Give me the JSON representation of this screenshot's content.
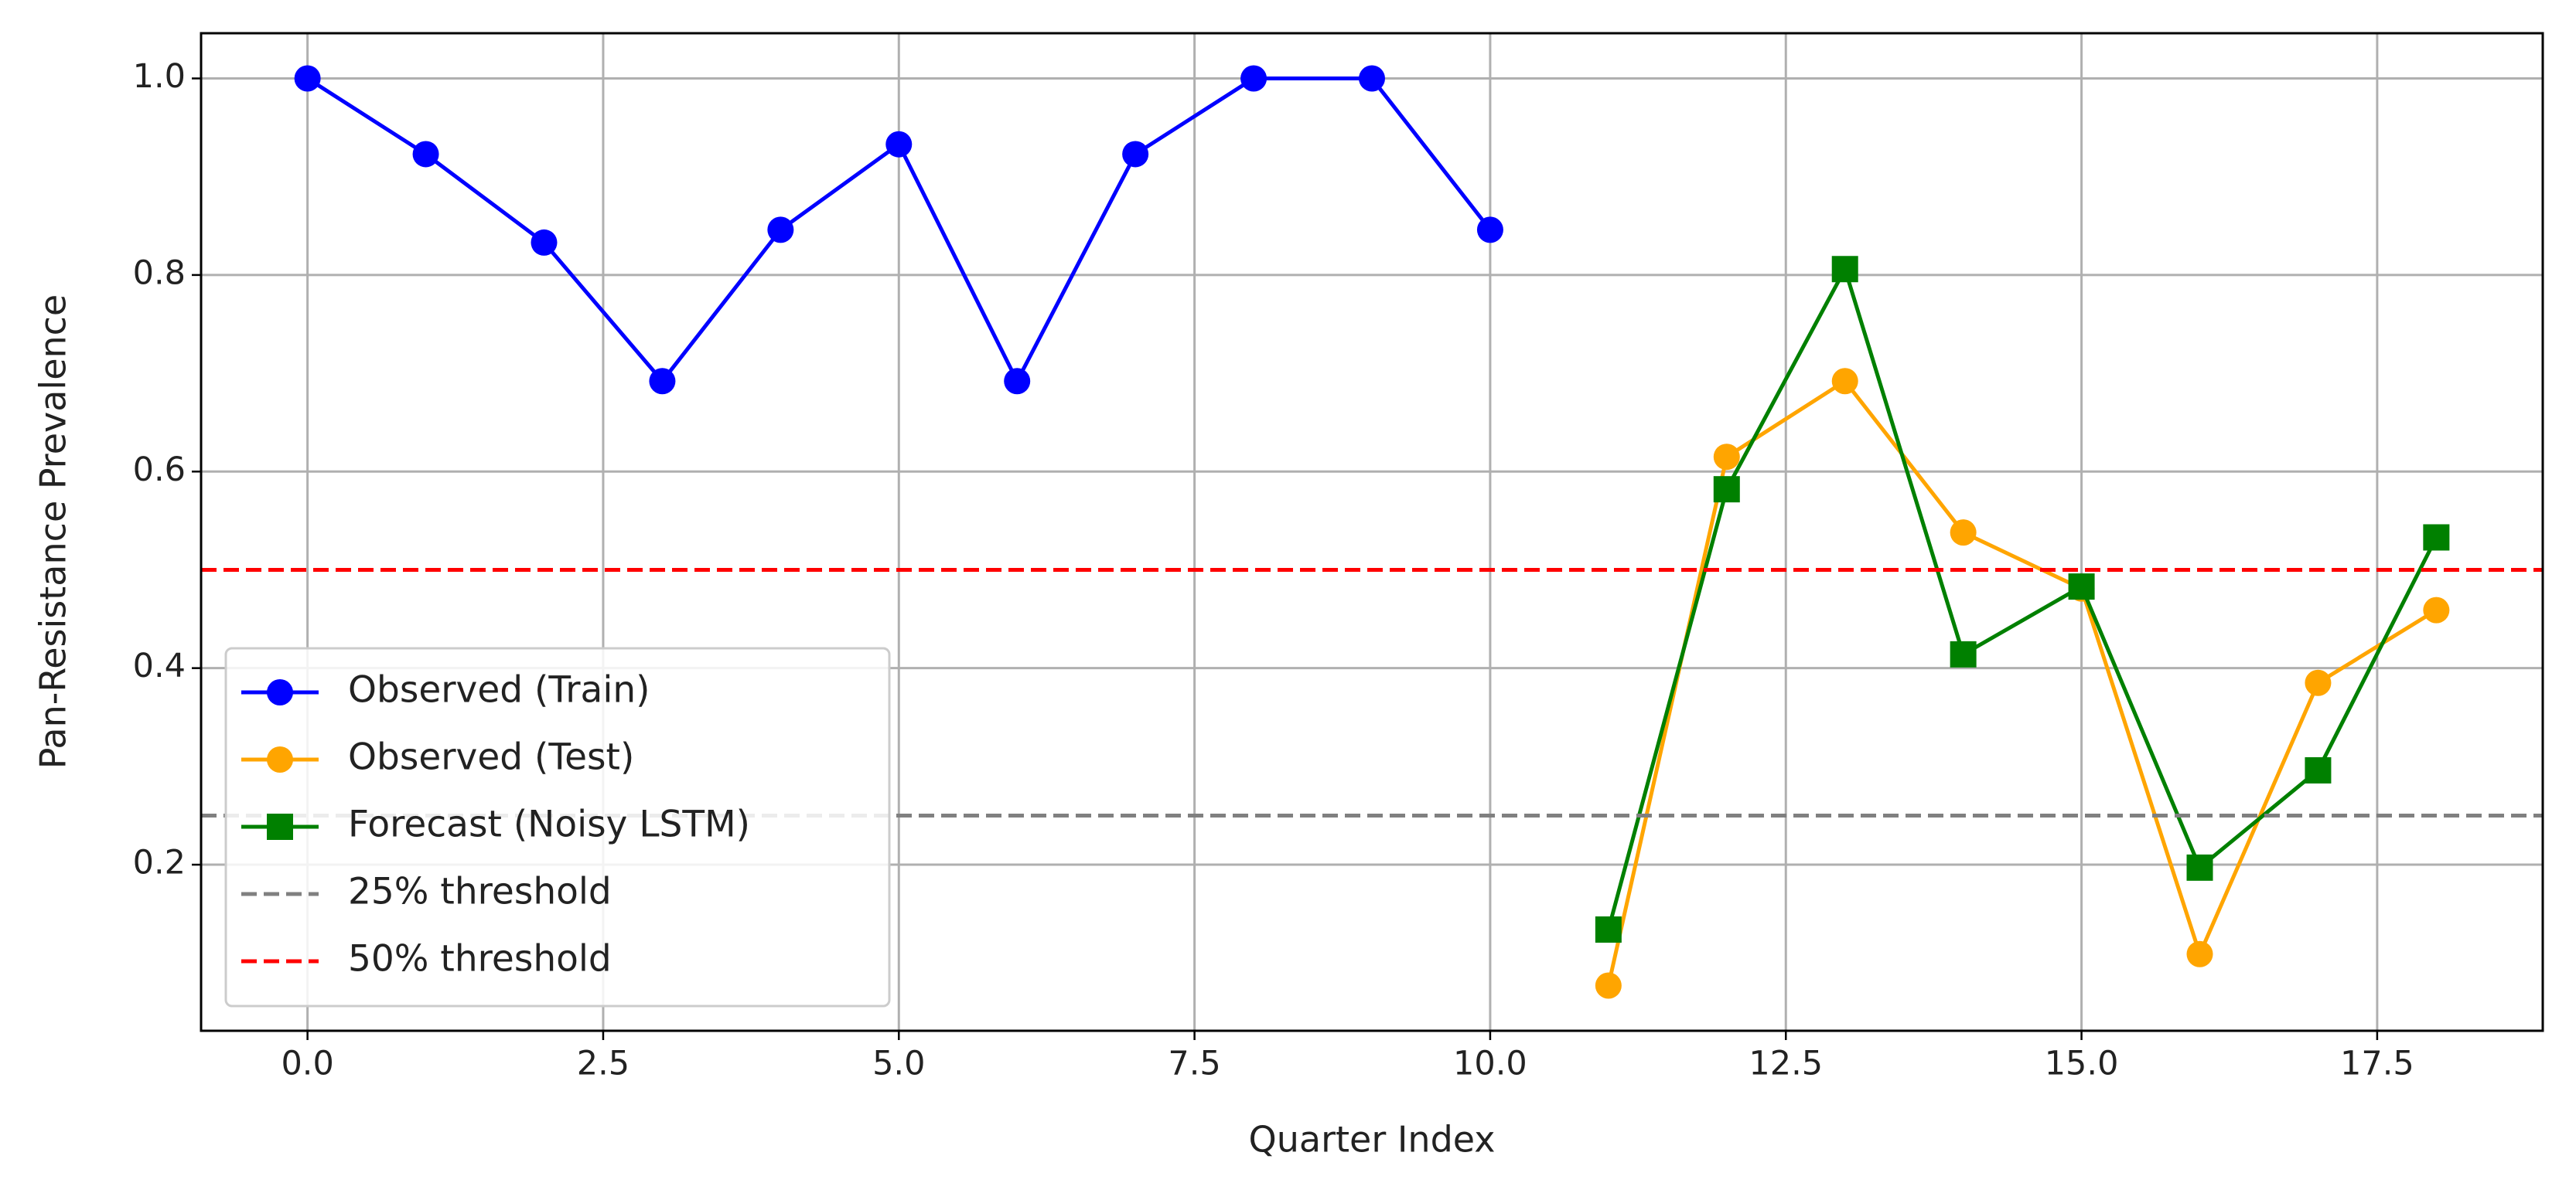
{
  "chart_data": {
    "type": "line",
    "xlabel": "Quarter Index",
    "ylabel": "Pan-Resistance Prevalence",
    "xlim": [
      -0.9,
      18.9
    ],
    "ylim": [
      0.031,
      1.046
    ],
    "xticks": [
      {
        "value": 0,
        "label": "0.0"
      },
      2.5,
      {
        "value": 5,
        "label": "5.0"
      },
      7.5,
      {
        "value": 10,
        "label": "10.0"
      },
      12.5,
      {
        "value": 15,
        "label": "15.0"
      },
      17.5
    ],
    "yticks": [
      0.2,
      0.4,
      0.6,
      0.8,
      {
        "value": 1,
        "label": "1.0"
      }
    ],
    "grid": true,
    "legend": "lower left",
    "series": [
      {
        "name": "Observed (Train)",
        "color": "#0000ff",
        "marker": "circle",
        "x": [
          0,
          1,
          2,
          3,
          4,
          5,
          6,
          7,
          8,
          9,
          10
        ],
        "values": [
          1.0,
          0.923,
          0.833,
          0.692,
          0.846,
          0.933,
          0.692,
          0.923,
          1.0,
          1.0,
          0.846
        ]
      },
      {
        "name": "Observed (Test)",
        "color": "#ffa500",
        "marker": "circle",
        "x": [
          11,
          12,
          13,
          14,
          15,
          16,
          17,
          18
        ],
        "values": [
          0.077,
          0.615,
          0.692,
          0.538,
          0.481,
          0.109,
          0.385,
          0.459
        ]
      },
      {
        "name": "Forecast (Noisy LSTM)",
        "color": "#008000",
        "marker": "square",
        "x": [
          11,
          12,
          13,
          14,
          15,
          16,
          17,
          18
        ],
        "values": [
          0.134,
          0.582,
          0.806,
          0.414,
          0.483,
          0.197,
          0.296,
          0.533
        ]
      }
    ],
    "hlines": [
      {
        "name": "25% threshold",
        "color": "#808080",
        "value": 0.25
      },
      {
        "name": "50% threshold",
        "color": "#ff0000",
        "value": 0.5
      }
    ]
  }
}
